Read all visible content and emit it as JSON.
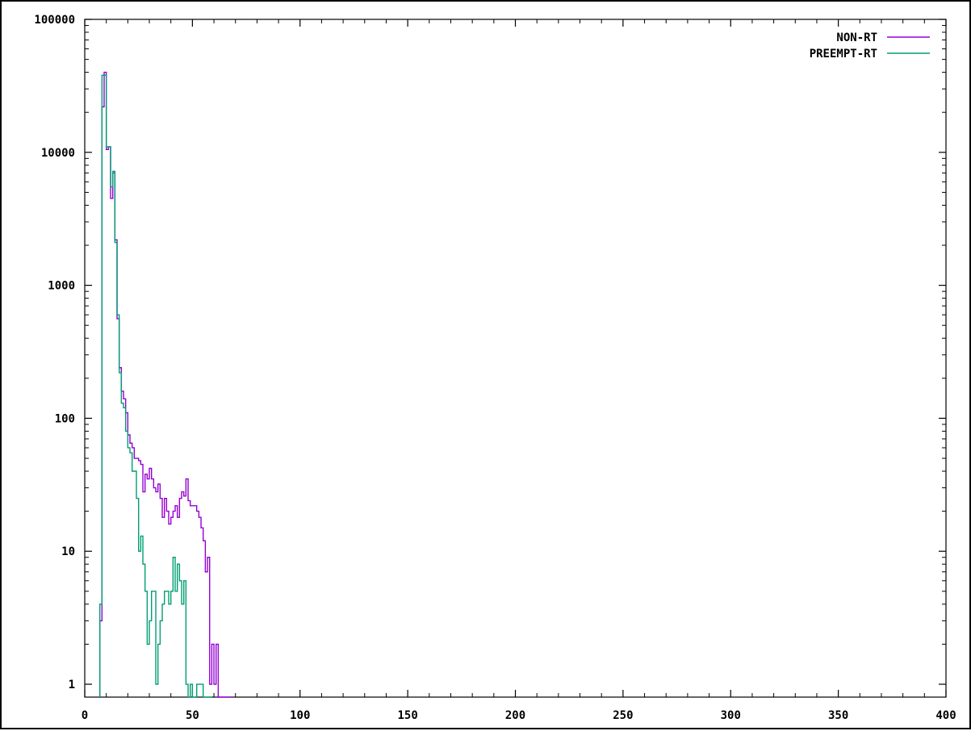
{
  "chart_data": {
    "type": "line",
    "step": true,
    "title": "",
    "xlabel": "",
    "ylabel": "",
    "xlim": [
      0,
      400
    ],
    "ylim": [
      0.8,
      100000
    ],
    "yscale": "log",
    "grid": false,
    "legend_position": "top-right",
    "x_ticks": [
      0,
      50,
      100,
      150,
      200,
      250,
      300,
      350,
      400
    ],
    "x_tick_labels": [
      "0",
      "50",
      "100",
      "150",
      "200",
      "250",
      "300",
      "350",
      "400"
    ],
    "y_ticks": [
      1,
      10,
      100,
      1000,
      10000,
      100000
    ],
    "y_tick_labels": [
      "1",
      "10",
      "100",
      "1000",
      "10000",
      "100000"
    ],
    "series": [
      {
        "name": "NON-RT",
        "color": "#9400d3",
        "x": [
          7,
          8,
          9,
          10,
          11,
          12,
          13,
          14,
          15,
          16,
          17,
          18,
          19,
          20,
          21,
          22,
          23,
          24,
          25,
          26,
          27,
          28,
          29,
          30,
          31,
          32,
          33,
          34,
          35,
          36,
          37,
          38,
          39,
          40,
          41,
          42,
          43,
          44,
          45,
          46,
          47,
          48,
          49,
          50,
          51,
          52,
          53,
          54,
          55,
          56,
          57,
          58,
          59,
          60,
          61,
          62,
          63,
          64,
          65,
          66,
          67
        ],
        "y": [
          3,
          22000,
          40000,
          10500,
          11000,
          4500,
          7000,
          2200,
          560,
          240,
          160,
          140,
          110,
          75,
          65,
          60,
          50,
          50,
          48,
          45,
          28,
          38,
          35,
          42,
          35,
          30,
          28,
          32,
          25,
          18,
          25,
          20,
          16,
          18,
          20,
          22,
          18,
          25,
          28,
          26,
          35,
          24,
          22,
          22,
          22,
          20,
          18,
          15,
          12,
          7,
          9,
          1,
          2,
          1,
          2,
          0.8,
          0.8,
          0.8,
          0.8,
          0.8,
          0.8
        ]
      },
      {
        "name": "PREEMPT-RT",
        "color": "#009e73",
        "x": [
          7,
          8,
          9,
          10,
          11,
          12,
          13,
          14,
          15,
          16,
          17,
          18,
          19,
          20,
          21,
          22,
          23,
          24,
          25,
          26,
          27,
          28,
          29,
          30,
          31,
          32,
          33,
          34,
          35,
          36,
          37,
          38,
          39,
          40,
          41,
          42,
          43,
          44,
          45,
          46,
          47,
          48,
          49,
          50,
          51,
          52,
          53,
          54,
          55,
          56,
          57,
          58
        ],
        "y": [
          4,
          38000,
          38000,
          11000,
          11000,
          5500,
          7200,
          2100,
          600,
          220,
          130,
          120,
          80,
          60,
          55,
          40,
          40,
          25,
          10,
          13,
          8,
          5,
          2,
          3,
          5,
          5,
          1,
          2,
          3,
          4,
          5,
          5,
          4,
          5,
          9,
          5,
          8,
          6,
          4,
          6,
          1,
          0.8,
          1,
          0.8,
          0.8,
          1,
          1,
          1,
          0.8,
          0.8,
          0.8,
          0.8
        ]
      }
    ]
  }
}
